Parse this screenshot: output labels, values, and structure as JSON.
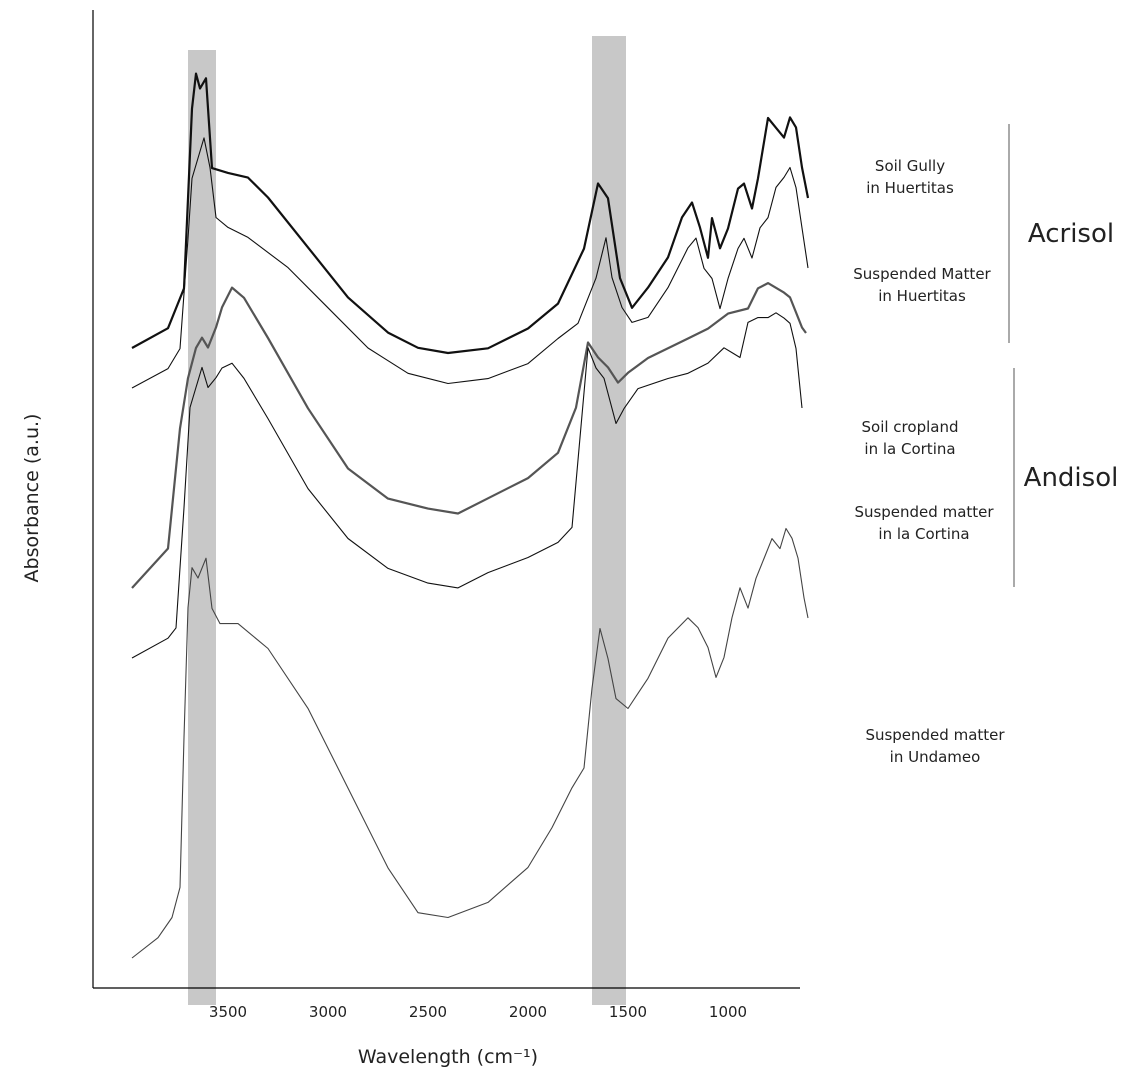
{
  "chart_data": {
    "type": "line",
    "title": "",
    "xlabel": "Wavelength (cm⁻¹)",
    "ylabel": "Absorbance (a.u.)",
    "x_reversed": true,
    "xlim": [
      4000,
      600
    ],
    "xticks": [
      "3500",
      "3000",
      "2500",
      "2000",
      "1500",
      "1000"
    ],
    "y_units": "arbitrary (stacked, offset spectra)",
    "highlight_bands": [
      {
        "from": 3700,
        "to": 3560
      },
      {
        "from": 1680,
        "to": 1510
      }
    ],
    "groups": [
      {
        "label": "Acrisol",
        "series": [
          "Soil Gully in Huertitas",
          "Suspended Matter in Huertitas"
        ]
      },
      {
        "label": "Andisol",
        "series": [
          "Soil cropland in la Cortina",
          "Suspended matter in la Cortina"
        ]
      }
    ],
    "series": [
      {
        "name": "Soil Gully in Huertitas",
        "label_lines": [
          "Soil Gully",
          "in Huertitas"
        ],
        "color": "#111111",
        "points": [
          [
            3980,
            0.64
          ],
          [
            3800,
            0.66
          ],
          [
            3720,
            0.7
          ],
          [
            3680,
            0.88
          ],
          [
            3660,
            0.915
          ],
          [
            3640,
            0.9
          ],
          [
            3610,
            0.91
          ],
          [
            3580,
            0.82
          ],
          [
            3500,
            0.815
          ],
          [
            3400,
            0.81
          ],
          [
            3300,
            0.79
          ],
          [
            3100,
            0.74
          ],
          [
            2900,
            0.69
          ],
          [
            2700,
            0.655
          ],
          [
            2550,
            0.64
          ],
          [
            2400,
            0.635
          ],
          [
            2200,
            0.64
          ],
          [
            2000,
            0.66
          ],
          [
            1850,
            0.685
          ],
          [
            1720,
            0.74
          ],
          [
            1650,
            0.805
          ],
          [
            1600,
            0.79
          ],
          [
            1540,
            0.71
          ],
          [
            1480,
            0.68
          ],
          [
            1400,
            0.7
          ],
          [
            1300,
            0.73
          ],
          [
            1230,
            0.77
          ],
          [
            1180,
            0.785
          ],
          [
            1140,
            0.76
          ],
          [
            1100,
            0.73
          ],
          [
            1080,
            0.77
          ],
          [
            1040,
            0.74
          ],
          [
            1000,
            0.76
          ],
          [
            950,
            0.8
          ],
          [
            920,
            0.805
          ],
          [
            880,
            0.78
          ],
          [
            850,
            0.81
          ],
          [
            800,
            0.87
          ],
          [
            760,
            0.86
          ],
          [
            720,
            0.85
          ],
          [
            690,
            0.87
          ],
          [
            660,
            0.86
          ],
          [
            630,
            0.82
          ],
          [
            600,
            0.79
          ]
        ]
      },
      {
        "name": "Suspended Matter in Huertitas",
        "label_lines": [
          "Suspended Matter",
          "in Huertitas"
        ],
        "color": "#111111",
        "points": [
          [
            3980,
            0.6
          ],
          [
            3800,
            0.62
          ],
          [
            3740,
            0.64
          ],
          [
            3700,
            0.75
          ],
          [
            3680,
            0.81
          ],
          [
            3650,
            0.83
          ],
          [
            3620,
            0.85
          ],
          [
            3590,
            0.82
          ],
          [
            3560,
            0.77
          ],
          [
            3500,
            0.76
          ],
          [
            3400,
            0.75
          ],
          [
            3200,
            0.72
          ],
          [
            3000,
            0.68
          ],
          [
            2800,
            0.64
          ],
          [
            2600,
            0.615
          ],
          [
            2400,
            0.605
          ],
          [
            2200,
            0.61
          ],
          [
            2000,
            0.625
          ],
          [
            1850,
            0.65
          ],
          [
            1750,
            0.665
          ],
          [
            1660,
            0.71
          ],
          [
            1610,
            0.75
          ],
          [
            1580,
            0.71
          ],
          [
            1530,
            0.68
          ],
          [
            1480,
            0.665
          ],
          [
            1400,
            0.67
          ],
          [
            1300,
            0.7
          ],
          [
            1200,
            0.74
          ],
          [
            1160,
            0.75
          ],
          [
            1120,
            0.72
          ],
          [
            1080,
            0.71
          ],
          [
            1040,
            0.68
          ],
          [
            1000,
            0.71
          ],
          [
            950,
            0.74
          ],
          [
            920,
            0.75
          ],
          [
            880,
            0.73
          ],
          [
            840,
            0.76
          ],
          [
            800,
            0.77
          ],
          [
            760,
            0.8
          ],
          [
            720,
            0.81
          ],
          [
            690,
            0.82
          ],
          [
            660,
            0.8
          ],
          [
            630,
            0.76
          ],
          [
            600,
            0.72
          ]
        ]
      },
      {
        "name": "Soil cropland in la Cortina",
        "label_lines": [
          "Soil cropland",
          "in la Cortina"
        ],
        "color": "#555555",
        "points": [
          [
            3980,
            0.4
          ],
          [
            3800,
            0.44
          ],
          [
            3740,
            0.56
          ],
          [
            3700,
            0.61
          ],
          [
            3660,
            0.64
          ],
          [
            3630,
            0.65
          ],
          [
            3600,
            0.64
          ],
          [
            3560,
            0.66
          ],
          [
            3530,
            0.68
          ],
          [
            3480,
            0.7
          ],
          [
            3420,
            0.69
          ],
          [
            3300,
            0.65
          ],
          [
            3100,
            0.58
          ],
          [
            2900,
            0.52
          ],
          [
            2700,
            0.49
          ],
          [
            2500,
            0.48
          ],
          [
            2350,
            0.475
          ],
          [
            2200,
            0.49
          ],
          [
            2000,
            0.51
          ],
          [
            1850,
            0.535
          ],
          [
            1760,
            0.58
          ],
          [
            1700,
            0.645
          ],
          [
            1650,
            0.63
          ],
          [
            1600,
            0.62
          ],
          [
            1550,
            0.605
          ],
          [
            1500,
            0.615
          ],
          [
            1400,
            0.63
          ],
          [
            1300,
            0.64
          ],
          [
            1200,
            0.65
          ],
          [
            1100,
            0.66
          ],
          [
            1000,
            0.675
          ],
          [
            900,
            0.68
          ],
          [
            850,
            0.7
          ],
          [
            800,
            0.705
          ],
          [
            760,
            0.7
          ],
          [
            720,
            0.695
          ],
          [
            690,
            0.69
          ],
          [
            660,
            0.675
          ],
          [
            630,
            0.66
          ],
          [
            610,
            0.655
          ]
        ]
      },
      {
        "name": "Suspended matter in la Cortina",
        "label_lines": [
          "Suspended matter",
          "in la Cortina"
        ],
        "color": "#111111",
        "points": [
          [
            3980,
            0.33
          ],
          [
            3800,
            0.35
          ],
          [
            3760,
            0.36
          ],
          [
            3720,
            0.48
          ],
          [
            3690,
            0.58
          ],
          [
            3660,
            0.6
          ],
          [
            3630,
            0.62
          ],
          [
            3600,
            0.6
          ],
          [
            3560,
            0.61
          ],
          [
            3530,
            0.62
          ],
          [
            3480,
            0.625
          ],
          [
            3420,
            0.61
          ],
          [
            3300,
            0.57
          ],
          [
            3100,
            0.5
          ],
          [
            2900,
            0.45
          ],
          [
            2700,
            0.42
          ],
          [
            2500,
            0.405
          ],
          [
            2350,
            0.4
          ],
          [
            2200,
            0.415
          ],
          [
            2000,
            0.43
          ],
          [
            1850,
            0.445
          ],
          [
            1780,
            0.46
          ],
          [
            1740,
            0.55
          ],
          [
            1700,
            0.64
          ],
          [
            1660,
            0.62
          ],
          [
            1620,
            0.61
          ],
          [
            1560,
            0.565
          ],
          [
            1520,
            0.58
          ],
          [
            1450,
            0.6
          ],
          [
            1300,
            0.61
          ],
          [
            1200,
            0.615
          ],
          [
            1100,
            0.625
          ],
          [
            1020,
            0.64
          ],
          [
            980,
            0.635
          ],
          [
            940,
            0.63
          ],
          [
            900,
            0.665
          ],
          [
            850,
            0.67
          ],
          [
            800,
            0.67
          ],
          [
            760,
            0.675
          ],
          [
            720,
            0.67
          ],
          [
            690,
            0.665
          ],
          [
            660,
            0.64
          ],
          [
            630,
            0.58
          ]
        ]
      },
      {
        "name": "Suspended matter in Undameo",
        "label_lines": [
          "Suspended matter",
          "in Undameo"
        ],
        "color": "#444444",
        "points": [
          [
            3980,
            0.03
          ],
          [
            3850,
            0.05
          ],
          [
            3780,
            0.07
          ],
          [
            3740,
            0.1
          ],
          [
            3720,
            0.25
          ],
          [
            3700,
            0.38
          ],
          [
            3680,
            0.42
          ],
          [
            3650,
            0.41
          ],
          [
            3610,
            0.43
          ],
          [
            3580,
            0.38
          ],
          [
            3540,
            0.365
          ],
          [
            3450,
            0.365
          ],
          [
            3300,
            0.34
          ],
          [
            3100,
            0.28
          ],
          [
            2900,
            0.2
          ],
          [
            2700,
            0.12
          ],
          [
            2550,
            0.075
          ],
          [
            2400,
            0.07
          ],
          [
            2200,
            0.085
          ],
          [
            2000,
            0.12
          ],
          [
            1880,
            0.16
          ],
          [
            1780,
            0.2
          ],
          [
            1720,
            0.22
          ],
          [
            1680,
            0.3
          ],
          [
            1640,
            0.36
          ],
          [
            1600,
            0.33
          ],
          [
            1560,
            0.29
          ],
          [
            1500,
            0.28
          ],
          [
            1400,
            0.31
          ],
          [
            1300,
            0.35
          ],
          [
            1200,
            0.37
          ],
          [
            1150,
            0.36
          ],
          [
            1100,
            0.34
          ],
          [
            1060,
            0.31
          ],
          [
            1020,
            0.33
          ],
          [
            980,
            0.37
          ],
          [
            940,
            0.4
          ],
          [
            900,
            0.38
          ],
          [
            860,
            0.41
          ],
          [
            820,
            0.43
          ],
          [
            780,
            0.45
          ],
          [
            740,
            0.44
          ],
          [
            710,
            0.46
          ],
          [
            680,
            0.45
          ],
          [
            650,
            0.43
          ],
          [
            620,
            0.39
          ],
          [
            600,
            0.37
          ]
        ]
      }
    ]
  }
}
